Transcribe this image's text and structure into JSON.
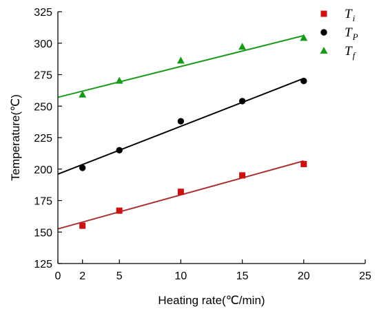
{
  "chart_data": {
    "type": "scatter",
    "title": "",
    "xlabel": "Heating rate(℃/min)",
    "ylabel": "Temperature(℃)",
    "xlim": [
      0,
      25
    ],
    "ylim": [
      125,
      325
    ],
    "xticks": [
      0,
      2,
      5,
      10,
      15,
      20,
      25
    ],
    "yticks": [
      125,
      150,
      175,
      200,
      225,
      250,
      275,
      300,
      325
    ],
    "grid": false,
    "legend_position": "top-right",
    "series": [
      {
        "name": "T_i",
        "legend_main": "T",
        "legend_sub": "i",
        "marker": "square",
        "color": "#cc1111",
        "line_color": "#a83232",
        "x": [
          2,
          5,
          10,
          15,
          20
        ],
        "y": [
          155,
          167,
          182,
          195,
          204
        ],
        "fit": {
          "intercept": 152.5,
          "slope": 2.7
        }
      },
      {
        "name": "T_P",
        "legend_main": "T",
        "legend_sub": "P",
        "marker": "circle",
        "color": "#000000",
        "line_color": "#000000",
        "x": [
          2,
          5,
          10,
          15,
          20
        ],
        "y": [
          201,
          215,
          238,
          254,
          270
        ],
        "fit": {
          "intercept": 196,
          "slope": 3.8
        }
      },
      {
        "name": "T_f",
        "legend_main": "T",
        "legend_sub": "f",
        "marker": "triangle",
        "color": "#1a9a1a",
        "line_color": "#1a9a1a",
        "x": [
          2,
          5,
          10,
          15,
          20
        ],
        "y": [
          259,
          270,
          286,
          297,
          304
        ],
        "fit": {
          "intercept": 257,
          "slope": 2.45
        }
      }
    ]
  }
}
